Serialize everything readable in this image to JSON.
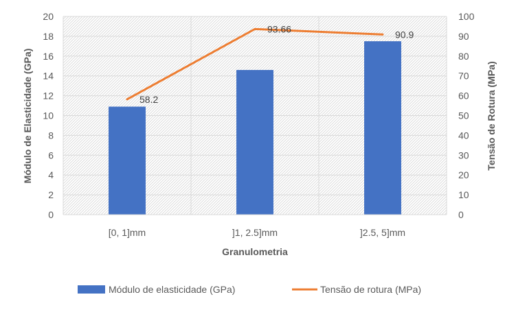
{
  "chart_data": {
    "type": "bar",
    "title": "",
    "categories": [
      "[0, 1]mm",
      "]1, 2.5]mm",
      "]2.5, 5]mm"
    ],
    "xlabel": "Granulometria",
    "ylabel": "Módulo de Elasticidade (GPa)",
    "y2label": "Tensão de Rotura (MPa)",
    "ylim": [
      0,
      20
    ],
    "yticks": [
      "0",
      "2",
      "4",
      "6",
      "8",
      "10",
      "12",
      "14",
      "16",
      "18",
      "20"
    ],
    "y2lim": [
      0,
      100
    ],
    "y2ticks": [
      "0",
      "10",
      "20",
      "30",
      "40",
      "50",
      "60",
      "70",
      "80",
      "90",
      "100"
    ],
    "grid": true,
    "legend_position": "bottom",
    "series": [
      {
        "name": "Módulo de elasticidade (GPa)",
        "type": "bar",
        "axis": "left",
        "values": [
          10.9,
          14.6,
          17.5
        ],
        "color": "#4472C4"
      },
      {
        "name": "Tensão de rotura (MPa)",
        "type": "line",
        "axis": "right",
        "values": [
          58.2,
          93.66,
          90.9
        ],
        "data_labels": [
          "58.2",
          "93.66",
          "90.9"
        ],
        "color": "#ED7D31"
      }
    ]
  }
}
